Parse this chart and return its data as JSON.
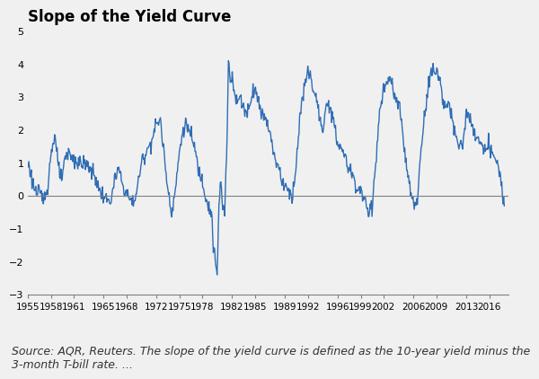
{
  "title": "Slope of the Yield Curve",
  "source_text": "Source: AQR, Reuters. The slope of the yield curve is defined as the 10-year yield minus the\n3-month T-bill rate. ...",
  "line_color": "#2F6DB5",
  "background_color": "#F0F0F0",
  "plot_bg_color": "#F0F0F0",
  "ylim": [
    -3,
    5
  ],
  "yticks": [
    -3,
    -2,
    -1,
    0,
    1,
    2,
    3,
    4,
    5
  ],
  "title_fontsize": 12,
  "source_fontsize": 9,
  "line_width": 1.0,
  "xtick_years": [
    1955,
    1958,
    1961,
    1965,
    1968,
    1972,
    1975,
    1978,
    1982,
    1985,
    1989,
    1992,
    1996,
    1999,
    2002,
    2006,
    2009,
    2013,
    2016
  ],
  "keypoints_years": [
    1955.0,
    1955.5,
    1956.0,
    1956.5,
    1957.0,
    1957.5,
    1958.0,
    1958.5,
    1959.0,
    1959.5,
    1960.0,
    1960.5,
    1961.0,
    1961.5,
    1962.0,
    1963.0,
    1964.0,
    1964.5,
    1965.0,
    1965.5,
    1966.0,
    1966.5,
    1967.0,
    1967.5,
    1968.0,
    1968.5,
    1969.0,
    1969.5,
    1970.0,
    1970.5,
    1971.0,
    1971.5,
    1972.0,
    1972.5,
    1973.0,
    1973.5,
    1974.0,
    1974.5,
    1975.0,
    1975.5,
    1976.0,
    1976.5,
    1977.0,
    1977.5,
    1978.0,
    1978.5,
    1979.0,
    1979.3,
    1979.5,
    1980.0,
    1980.2,
    1980.5,
    1980.7,
    1981.0,
    1981.3,
    1981.5,
    1981.8,
    1982.0,
    1982.5,
    1983.0,
    1983.5,
    1984.0,
    1984.5,
    1985.0,
    1985.5,
    1986.0,
    1986.5,
    1987.0,
    1987.5,
    1988.0,
    1988.5,
    1989.0,
    1989.5,
    1990.0,
    1990.5,
    1991.0,
    1991.5,
    1992.0,
    1992.5,
    1993.0,
    1993.5,
    1994.0,
    1994.5,
    1995.0,
    1995.5,
    1996.0,
    1996.5,
    1997.0,
    1997.5,
    1998.0,
    1998.5,
    1999.0,
    1999.5,
    2000.0,
    2000.5,
    2001.0,
    2001.5,
    2002.0,
    2002.5,
    2003.0,
    2003.5,
    2004.0,
    2004.5,
    2005.0,
    2005.5,
    2006.0,
    2006.5,
    2007.0,
    2007.5,
    2008.0,
    2008.5,
    2009.0,
    2009.5,
    2010.0,
    2010.5,
    2011.0,
    2011.5,
    2012.0,
    2012.5,
    2013.0,
    2013.5,
    2014.0,
    2014.5,
    2015.0,
    2015.5,
    2016.0,
    2016.5,
    2017.0,
    2017.5,
    2018.0
  ],
  "keypoints_vals": [
    1.0,
    0.5,
    0.1,
    0.05,
    -0.1,
    0.2,
    1.2,
    1.9,
    0.8,
    0.5,
    1.2,
    1.3,
    1.1,
    1.0,
    1.0,
    0.9,
    0.5,
    0.1,
    0.0,
    -0.2,
    -0.1,
    0.5,
    0.8,
    0.3,
    0.1,
    -0.15,
    -0.2,
    0.3,
    1.0,
    1.3,
    1.5,
    1.8,
    2.2,
    2.3,
    1.2,
    0.2,
    -0.5,
    0.2,
    1.3,
    2.0,
    2.2,
    1.8,
    1.5,
    0.8,
    0.5,
    0.0,
    -0.4,
    -0.6,
    -1.5,
    -2.5,
    -0.5,
    0.5,
    -0.4,
    -0.5,
    1.5,
    4.1,
    3.5,
    3.7,
    2.8,
    3.0,
    2.7,
    2.5,
    3.0,
    3.3,
    2.8,
    2.5,
    2.3,
    2.0,
    1.2,
    1.0,
    0.5,
    0.3,
    0.1,
    0.05,
    1.0,
    2.5,
    3.2,
    3.8,
    3.5,
    3.0,
    2.5,
    1.8,
    2.8,
    2.8,
    2.0,
    1.6,
    1.4,
    1.1,
    0.8,
    0.6,
    0.2,
    0.2,
    -0.2,
    -0.5,
    -0.3,
    1.0,
    2.5,
    3.2,
    3.4,
    3.5,
    3.0,
    2.8,
    2.0,
    1.0,
    0.2,
    -0.3,
    -0.2,
    1.5,
    2.5,
    3.5,
    3.8,
    3.8,
    3.5,
    2.8,
    2.7,
    2.5,
    1.8,
    1.5,
    1.6,
    2.5,
    2.3,
    1.8,
    1.8,
    1.5,
    1.3,
    1.5,
    1.3,
    1.0,
    0.5,
    -0.3
  ]
}
